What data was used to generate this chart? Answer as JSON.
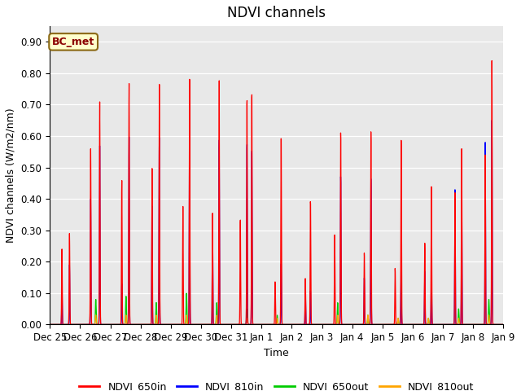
{
  "title": "NDVI channels",
  "xlabel": "Time",
  "ylabel": "NDVI channels (W/m2/nm)",
  "ylim": [
    0.0,
    0.95
  ],
  "yticks": [
    0.0,
    0.1,
    0.2,
    0.3,
    0.4,
    0.5,
    0.6,
    0.7,
    0.8,
    0.9
  ],
  "plot_bg_color": "#e8e8e8",
  "annotation_text": "BC_met",
  "annotation_box_color": "#ffffcc",
  "annotation_box_edge": "#8B6914",
  "legend_labels": [
    "NDVI_650in",
    "NDVI_810in",
    "NDVI_650out",
    "NDVI_810out"
  ],
  "line_colors": {
    "NDVI_650in": "red",
    "NDVI_810in": "blue",
    "NDVI_650out": "#00cc00",
    "NDVI_810out": "orange"
  },
  "x_tick_labels": [
    "Dec 25",
    "Dec 26",
    "Dec 27",
    "Dec 28",
    "Dec 29",
    "Dec 30",
    "Dec 31",
    "Jan 1",
    "Jan 2",
    "Jan 3",
    "Jan 4",
    "Jan 5",
    "Jan 6",
    "Jan 7",
    "Jan 8",
    "Jan 9"
  ],
  "num_days": 15,
  "title_fontsize": 12,
  "label_fontsize": 9,
  "tick_fontsize": 8.5
}
